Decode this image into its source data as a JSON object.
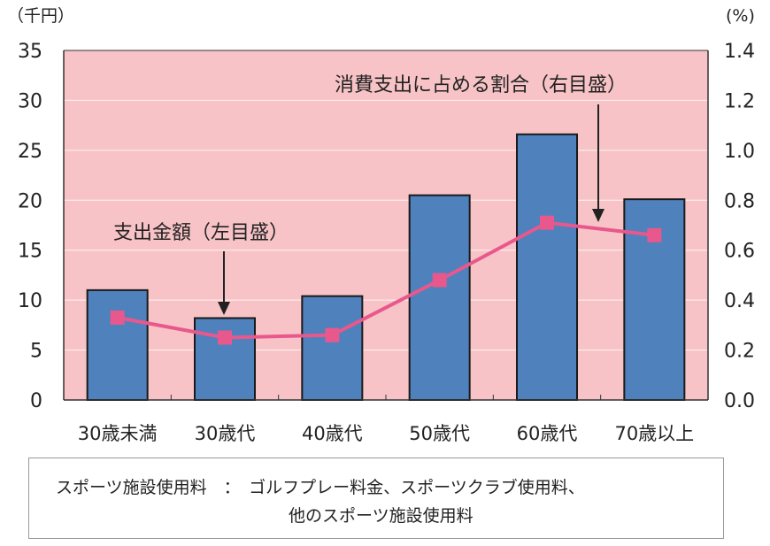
{
  "chart_data": {
    "type": "bar+line",
    "categories": [
      "30歳未満",
      "30歳代",
      "40歳代",
      "50歳代",
      "60歳代",
      "70歳以上"
    ],
    "series": [
      {
        "name": "支出金額（左目盛）",
        "type": "bar",
        "axis": "left",
        "values": [
          11.0,
          8.2,
          10.4,
          20.5,
          26.6,
          20.1
        ]
      },
      {
        "name": "消費支出に占める割合（右目盛）",
        "type": "line",
        "axis": "right",
        "values": [
          0.33,
          0.25,
          0.26,
          0.48,
          0.71,
          0.66
        ]
      }
    ],
    "ylabel_left": "（千円）",
    "ylabel_right": "(%)",
    "ylim_left": [
      0,
      35
    ],
    "yticks_left": [
      "0",
      "5",
      "10",
      "15",
      "20",
      "25",
      "30",
      "35"
    ],
    "ylim_right": [
      0,
      1.4
    ],
    "yticks_right": [
      "0.0",
      "0.2",
      "0.4",
      "0.6",
      "0.8",
      "1.0",
      "1.2",
      "1.4"
    ],
    "grid": true,
    "colors": {
      "plot_bg": "#f7c3c6",
      "bar": "#4f81bd",
      "line": "#e8588c"
    }
  },
  "note": {
    "line1": "スポーツ施設使用料　：　ゴルフプレー料金、スポーツクラブ使用料、",
    "line2": "他のスポーツ施設使用料"
  }
}
